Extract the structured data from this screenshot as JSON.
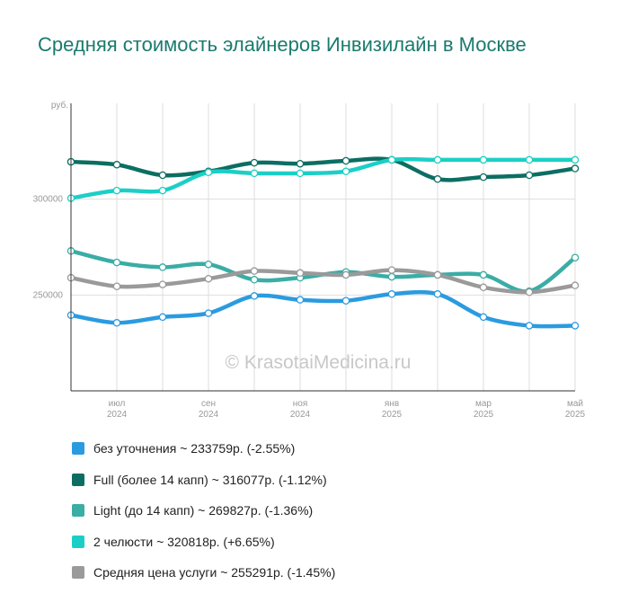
{
  "title": "Средняя стоимость элайнеров Инвизилайн в Москве",
  "watermark": "© KrasotaiMedicina.ru",
  "legend": [
    {
      "label": "без уточнения ~ 233759р. (-2.55%)",
      "color": "#2b9be0"
    },
    {
      "label": "Full (более 14 капп) ~ 316077р. (-1.12%)",
      "color": "#0c6e62"
    },
    {
      "label": "Light (до 14 капп) ~ 269827р. (-1.36%)",
      "color": "#3aada5"
    },
    {
      "label": "2 челюсти ~ 320818р. (+6.65%)",
      "color": "#1ccfc6"
    },
    {
      "label": "Средняя цена услуги ~ 255291р. (-1.45%)",
      "color": "#9a9a9a"
    }
  ],
  "chart_data": {
    "type": "line",
    "title": "Средняя стоимость элайнеров Инвизилайн в Москве",
    "ylabel": "руб.",
    "ylim": [
      200000,
      350000
    ],
    "y_ticks": [
      250000,
      300000
    ],
    "y_tick_labels": [
      "250000",
      "300000"
    ],
    "x": [
      "2024-06",
      "2024-07",
      "2024-08",
      "2024-09",
      "2024-10",
      "2024-11",
      "2024-12",
      "2025-01",
      "2025-02",
      "2025-03",
      "2025-04",
      "2025-05"
    ],
    "x_tick_labels": [
      {
        "index": 1,
        "month": "июл",
        "year": "2024"
      },
      {
        "index": 3,
        "month": "сен",
        "year": "2024"
      },
      {
        "index": 5,
        "month": "ноя",
        "year": "2024"
      },
      {
        "index": 7,
        "month": "янв",
        "year": "2025"
      },
      {
        "index": 9,
        "month": "мар",
        "year": "2025"
      },
      {
        "index": 11,
        "month": "май",
        "year": "2025"
      }
    ],
    "grid": true,
    "series": [
      {
        "name": "без уточнения",
        "color": "#2b9be0",
        "values": [
          239500,
          235500,
          238500,
          240500,
          249500,
          247500,
          247000,
          250500,
          250500,
          238500,
          234000,
          234000
        ]
      },
      {
        "name": "Full (более 14 капп)",
        "color": "#0c6e62",
        "values": [
          319500,
          318000,
          312500,
          314500,
          319000,
          318500,
          320000,
          320500,
          310500,
          311500,
          312500,
          316000
        ]
      },
      {
        "name": "Light (до 14 капп)",
        "color": "#3aada5",
        "values": [
          273000,
          267000,
          264500,
          266000,
          258000,
          259000,
          262000,
          259500,
          260500,
          260500,
          252000,
          269500
        ]
      },
      {
        "name": "2 челюсти",
        "color": "#1ccfc6",
        "values": [
          300500,
          304500,
          304500,
          314000,
          313500,
          313500,
          314500,
          320500,
          320500,
          320500,
          320500,
          320500
        ]
      },
      {
        "name": "Средняя цена услуги",
        "color": "#9a9a9a",
        "values": [
          259000,
          254500,
          255500,
          258500,
          262500,
          261500,
          260500,
          263000,
          260500,
          254000,
          251500,
          255000
        ]
      }
    ]
  }
}
